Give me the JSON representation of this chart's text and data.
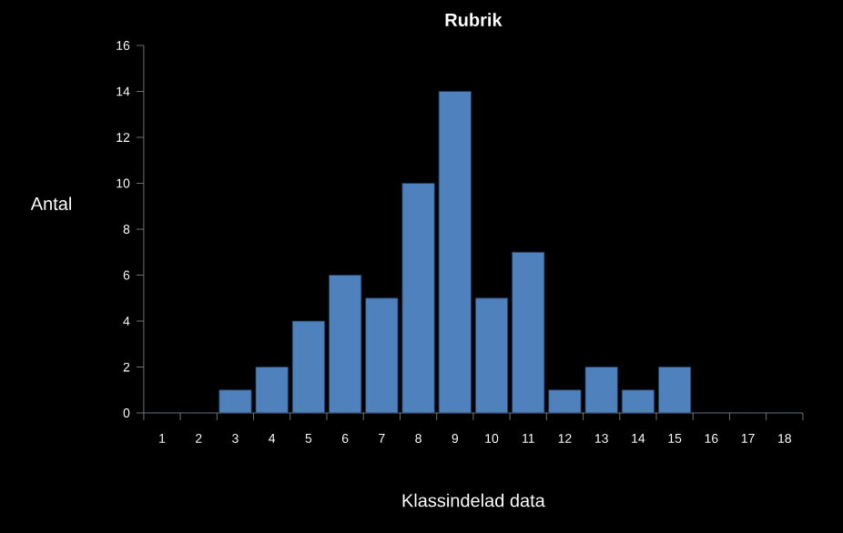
{
  "chart_data": {
    "type": "bar",
    "title": "Rubrik",
    "xlabel": "Klassindelad data",
    "ylabel": "Antal",
    "categories": [
      "1",
      "2",
      "3",
      "4",
      "5",
      "6",
      "7",
      "8",
      "9",
      "10",
      "11",
      "12",
      "13",
      "14",
      "15",
      "16",
      "17",
      "18"
    ],
    "values": [
      0,
      0,
      1,
      2,
      4,
      6,
      5,
      10,
      14,
      5,
      7,
      1,
      2,
      1,
      2,
      0,
      0,
      0
    ],
    "color": "#4f81bd",
    "ylim": [
      0,
      16
    ],
    "yticks": [
      0,
      2,
      4,
      6,
      8,
      10,
      12,
      14,
      16
    ]
  }
}
